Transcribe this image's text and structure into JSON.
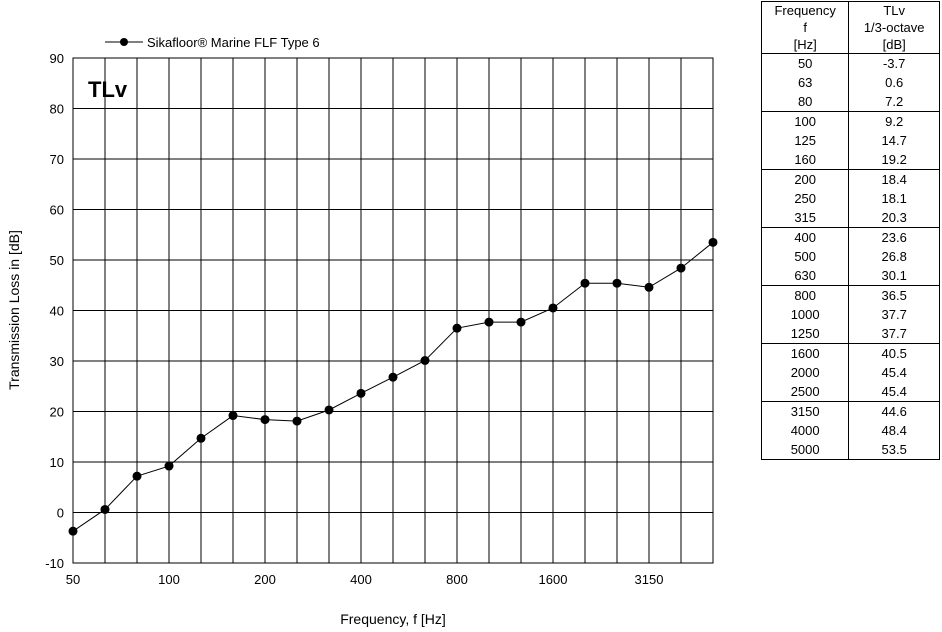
{
  "chart_data": {
    "type": "line",
    "chart_label": "TLv",
    "xlabel": "Frequency,  f [Hz]",
    "ylabel": "Transmission Loss in   [dB]",
    "ylim": [
      -10,
      90
    ],
    "yticks": [
      -10,
      0,
      10,
      20,
      30,
      40,
      50,
      60,
      70,
      80,
      90
    ],
    "x_scale": "log (1/3-octave bands)",
    "xtick_labels": [
      "50",
      "100",
      "200",
      "400",
      "800",
      "1600",
      "3150"
    ],
    "grid": true,
    "legend_position": "top-left",
    "categories": [
      50,
      63,
      80,
      100,
      125,
      160,
      200,
      250,
      315,
      400,
      500,
      630,
      800,
      1000,
      1250,
      1600,
      2000,
      2500,
      3150,
      4000,
      5000
    ],
    "series": [
      {
        "name": "Sikafloor® Marine FLF Type 6",
        "color": "#000000",
        "values": [
          -3.7,
          0.6,
          7.2,
          9.2,
          14.7,
          19.2,
          18.4,
          18.1,
          20.3,
          23.6,
          26.8,
          30.1,
          36.5,
          37.7,
          37.7,
          40.5,
          45.4,
          45.4,
          44.6,
          48.4,
          53.5
        ]
      }
    ]
  },
  "table": {
    "headers": {
      "col1": [
        "Frequency",
        "f",
        "[Hz]"
      ],
      "col2": [
        "TLv",
        "1/3-octave",
        "[dB]"
      ]
    },
    "rows": [
      [
        "50",
        "-3.7"
      ],
      [
        "63",
        "0.6"
      ],
      [
        "80",
        "7.2"
      ],
      [
        "100",
        "9.2"
      ],
      [
        "125",
        "14.7"
      ],
      [
        "160",
        "19.2"
      ],
      [
        "200",
        "18.4"
      ],
      [
        "250",
        "18.1"
      ],
      [
        "315",
        "20.3"
      ],
      [
        "400",
        "23.6"
      ],
      [
        "500",
        "26.8"
      ],
      [
        "630",
        "30.1"
      ],
      [
        "800",
        "36.5"
      ],
      [
        "1000",
        "37.7"
      ],
      [
        "1250",
        "37.7"
      ],
      [
        "1600",
        "40.5"
      ],
      [
        "2000",
        "45.4"
      ],
      [
        "2500",
        "45.4"
      ],
      [
        "3150",
        "44.6"
      ],
      [
        "4000",
        "48.4"
      ],
      [
        "5000",
        "53.5"
      ]
    ]
  }
}
